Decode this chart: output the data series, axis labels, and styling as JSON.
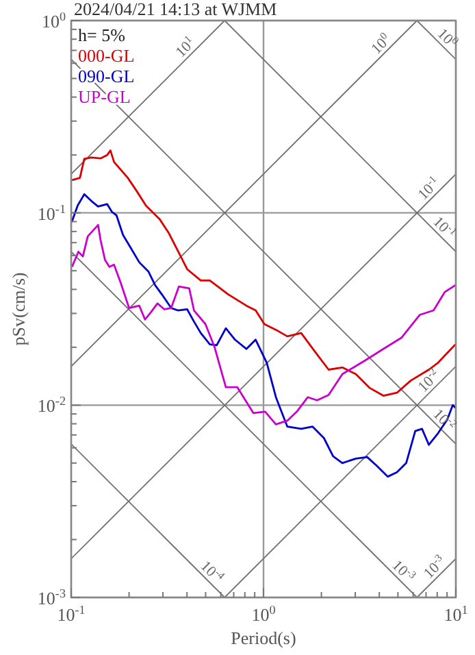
{
  "chart_data": {
    "type": "line",
    "title": "2024/04/21 14:13 at WJMM",
    "xlabel": "Period(s)",
    "ylabel": "pSv(cm/s)",
    "log": "xy",
    "grid": true,
    "legend": "top left",
    "line_style": "solid",
    "marker": "none",
    "xlim": [
      0.1,
      10
    ],
    "ylim": [
      0.001,
      1
    ],
    "xticks": [
      {
        "value": 0.1,
        "label": "10$^{-1}$"
      },
      {
        "value": 0.2,
        "label": null
      },
      {
        "value": 0.3,
        "label": null
      },
      {
        "value": 0.4,
        "label": null
      },
      {
        "value": 0.5,
        "label": null
      },
      {
        "value": 0.6,
        "label": null
      },
      {
        "value": 0.7,
        "label": null
      },
      {
        "value": 0.8,
        "label": null
      },
      {
        "value": 0.9,
        "label": null
      },
      {
        "value": 1,
        "label": "10$^{0}$"
      },
      {
        "value": 2,
        "label": null
      },
      {
        "value": 3,
        "label": null
      },
      {
        "value": 4,
        "label": null
      },
      {
        "value": 5,
        "label": null
      },
      {
        "value": 6,
        "label": null
      },
      {
        "value": 7,
        "label": null
      },
      {
        "value": 8,
        "label": null
      },
      {
        "value": 9,
        "label": null
      },
      {
        "value": 10,
        "label": "10$^{1}$"
      }
    ],
    "yticks": [
      {
        "value": 0.001,
        "label": "10$^{-3}$"
      },
      {
        "value": 0.002,
        "label": null
      },
      {
        "value": 0.003,
        "label": null
      },
      {
        "value": 0.004,
        "label": null
      },
      {
        "value": 0.005,
        "label": null
      },
      {
        "value": 0.006,
        "label": null
      },
      {
        "value": 0.007,
        "label": null
      },
      {
        "value": 0.008,
        "label": null
      },
      {
        "value": 0.009,
        "label": null
      },
      {
        "value": 0.01,
        "label": "10$^{-2}$"
      },
      {
        "value": 0.02,
        "label": null
      },
      {
        "value": 0.03,
        "label": null
      },
      {
        "value": 0.04,
        "label": null
      },
      {
        "value": 0.05,
        "label": null
      },
      {
        "value": 0.06,
        "label": null
      },
      {
        "value": 0.07,
        "label": null
      },
      {
        "value": 0.08,
        "label": null
      },
      {
        "value": 0.09,
        "label": null
      },
      {
        "value": 0.1,
        "label": "10$^{-1}$"
      },
      {
        "value": 0.2,
        "label": null
      },
      {
        "value": 0.3,
        "label": null
      },
      {
        "value": 0.4,
        "label": null
      },
      {
        "value": 0.5,
        "label": null
      },
      {
        "value": 0.6,
        "label": null
      },
      {
        "value": 0.7,
        "label": null
      },
      {
        "value": 0.8,
        "label": null
      },
      {
        "value": 0.9,
        "label": null
      },
      {
        "value": 1,
        "label": "10$^{0}$"
      }
    ],
    "series": [
      {
        "type": "line",
        "color": "#707070",
        "x": [
          6.28,
          10
        ],
        "values": [
          1,
          0.628
        ]
      },
      {
        "type": "line",
        "color": "#707070",
        "x": [
          0.628,
          10
        ],
        "values": [
          1,
          0.0628
        ]
      },
      {
        "type": "line",
        "color": "#707070",
        "x": [
          0.1,
          10
        ],
        "values": [
          0.628,
          0.00628
        ]
      },
      {
        "type": "line",
        "color": "#707070",
        "x": [
          0.1,
          6.28
        ],
        "values": [
          0.0628,
          0.001
        ]
      },
      {
        "type": "line",
        "color": "#707070",
        "x": [
          0.1,
          0.628
        ],
        "values": [
          0.00628,
          0.001
        ]
      },
      {
        "type": "line",
        "color": "#707070",
        "x": [
          0.1,
          0.628
        ],
        "values": [
          0.159,
          1
        ]
      },
      {
        "type": "line",
        "color": "#707070",
        "x": [
          0.1,
          6.28
        ],
        "values": [
          0.0159,
          1
        ]
      },
      {
        "type": "line",
        "color": "#707070",
        "x": [
          0.1,
          10
        ],
        "values": [
          0.00159,
          0.159
        ]
      },
      {
        "type": "line",
        "color": "#707070",
        "x": [
          0.628,
          10
        ],
        "values": [
          0.001,
          0.0159
        ]
      },
      {
        "type": "line",
        "color": "#707070",
        "x": [
          6.28,
          10
        ],
        "values": [
          0.001,
          0.00159
        ]
      },
      {
        "type": "line",
        "name": "000-GL",
        "color": "#dd0000",
        "x": [
          0.101,
          0.111,
          0.117,
          0.127,
          0.142,
          0.154,
          0.16,
          0.167,
          0.197,
          0.22,
          0.245,
          0.288,
          0.321,
          0.369,
          0.401,
          0.472,
          0.526,
          0.655,
          0.815,
          0.91,
          1.01,
          1.19,
          1.33,
          1.57,
          1.85,
          2.18,
          2.57,
          3.02,
          3.56,
          4.2,
          4.94,
          5.82,
          7.24,
          8.07,
          9.95
        ],
        "values": [
          0.148,
          0.152,
          0.191,
          0.194,
          0.192,
          0.2,
          0.211,
          0.184,
          0.152,
          0.129,
          0.109,
          0.0929,
          0.0788,
          0.06,
          0.0509,
          0.0445,
          0.0445,
          0.0377,
          0.0329,
          0.0311,
          0.0264,
          0.0243,
          0.0228,
          0.0237,
          0.019,
          0.0153,
          0.0157,
          0.0145,
          0.0123,
          0.0112,
          0.0116,
          0.0134,
          0.0153,
          0.0166,
          0.0207
        ]
      },
      {
        "type": "line",
        "name": "090-GL",
        "color": "#0000cc",
        "x": [
          0.101,
          0.108,
          0.117,
          0.127,
          0.138,
          0.154,
          0.163,
          0.172,
          0.186,
          0.202,
          0.226,
          0.252,
          0.273,
          0.296,
          0.331,
          0.359,
          0.401,
          0.435,
          0.472,
          0.526,
          0.571,
          0.637,
          0.711,
          0.815,
          0.91,
          1.04,
          1.16,
          1.33,
          1.57,
          1.8,
          2.06,
          2.3,
          2.57,
          3.02,
          3.46,
          3.86,
          4.43,
          4.94,
          5.52,
          6.15,
          6.67,
          7.24,
          8.07,
          9.02,
          9.64,
          10
        ],
        "values": [
          0.0903,
          0.109,
          0.125,
          0.1155,
          0.108,
          0.111,
          0.101,
          0.0971,
          0.0767,
          0.0669,
          0.0553,
          0.0496,
          0.0421,
          0.0377,
          0.032,
          0.0311,
          0.0315,
          0.0272,
          0.0237,
          0.0207,
          0.0205,
          0.0251,
          0.0219,
          0.0196,
          0.0219,
          0.0166,
          0.011,
          0.00773,
          0.00753,
          0.00773,
          0.00675,
          0.00543,
          0.005,
          0.00527,
          0.00537,
          0.00486,
          0.00425,
          0.00448,
          0.005,
          0.00733,
          0.00753,
          0.00622,
          0.00713,
          0.0084,
          0.01,
          0.00964
        ]
      },
      {
        "type": "line",
        "name": "UP-GL",
        "color": "#cc00cc",
        "x": [
          0.101,
          0.109,
          0.115,
          0.122,
          0.138,
          0.142,
          0.15,
          0.158,
          0.167,
          0.181,
          0.2,
          0.226,
          0.242,
          0.259,
          0.281,
          0.305,
          0.331,
          0.363,
          0.411,
          0.435,
          0.499,
          0.556,
          0.637,
          0.73,
          0.885,
          1.02,
          1.16,
          1.33,
          1.49,
          1.7,
          1.9,
          2.18,
          2.57,
          3.38,
          4.2,
          5.21,
          6.5,
          7.66,
          8.77,
          9.95
        ],
        "values": [
          0.0524,
          0.0627,
          0.0594,
          0.0755,
          0.0865,
          0.0726,
          0.0568,
          0.0524,
          0.0538,
          0.0432,
          0.032,
          0.0329,
          0.0279,
          0.0303,
          0.0338,
          0.0315,
          0.032,
          0.0414,
          0.0405,
          0.0311,
          0.0264,
          0.0201,
          0.0124,
          0.0124,
          0.0091,
          0.00925,
          0.00795,
          0.00831,
          0.00925,
          0.011,
          0.0106,
          0.0113,
          0.0145,
          0.0171,
          0.0196,
          0.0224,
          0.0295,
          0.0311,
          0.0388,
          0.0421
        ]
      }
    ],
    "annotations": [
      "h= 5%",
      {
        "text": "10$^{1}$",
        "x": 0.423,
        "y": 0.673
      },
      {
        "text": "10$^{0}$",
        "x": 4.4,
        "y": 0.7
      },
      {
        "text": "10$^{0}$",
        "x": 8.36,
        "y": 0.751
      },
      {
        "text": "10$^{-1}$",
        "x": 7.81,
        "y": 0.124
      },
      {
        "text": "10$^{-1}$",
        "x": 8.07,
        "y": 0.0778
      },
      {
        "text": "10$^{-2}$",
        "x": 7.81,
        "y": 0.0124
      },
      {
        "text": "10$^{-2}$",
        "x": 8.07,
        "y": 0.00778
      },
      {
        "text": "10$^{-3}$",
        "x": 4.94,
        "y": 0.00127
      },
      {
        "text": "10$^{-3}$",
        "x": 8.36,
        "y": 0.00133
      },
      {
        "text": "10$^{-4}$",
        "x": 0.499,
        "y": 0.00126
      }
    ]
  }
}
